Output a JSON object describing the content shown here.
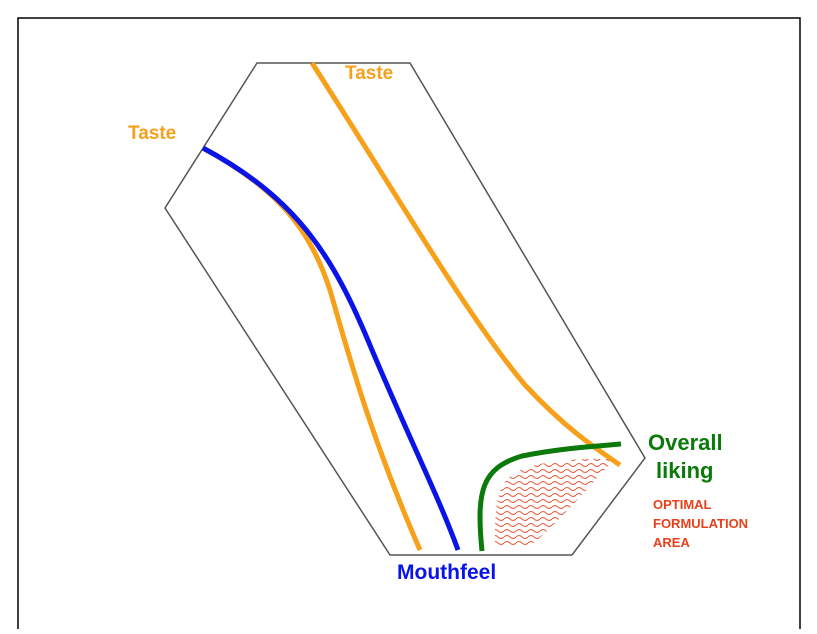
{
  "labels": {
    "taste_top": "Taste",
    "taste_left": "Taste",
    "mouthfeel": "Mouthfeel",
    "overall_liking": [
      "Overall",
      "liking"
    ],
    "optimal_area": [
      "OPTIMAL",
      "FORMULATION",
      "AREA"
    ]
  }
}
